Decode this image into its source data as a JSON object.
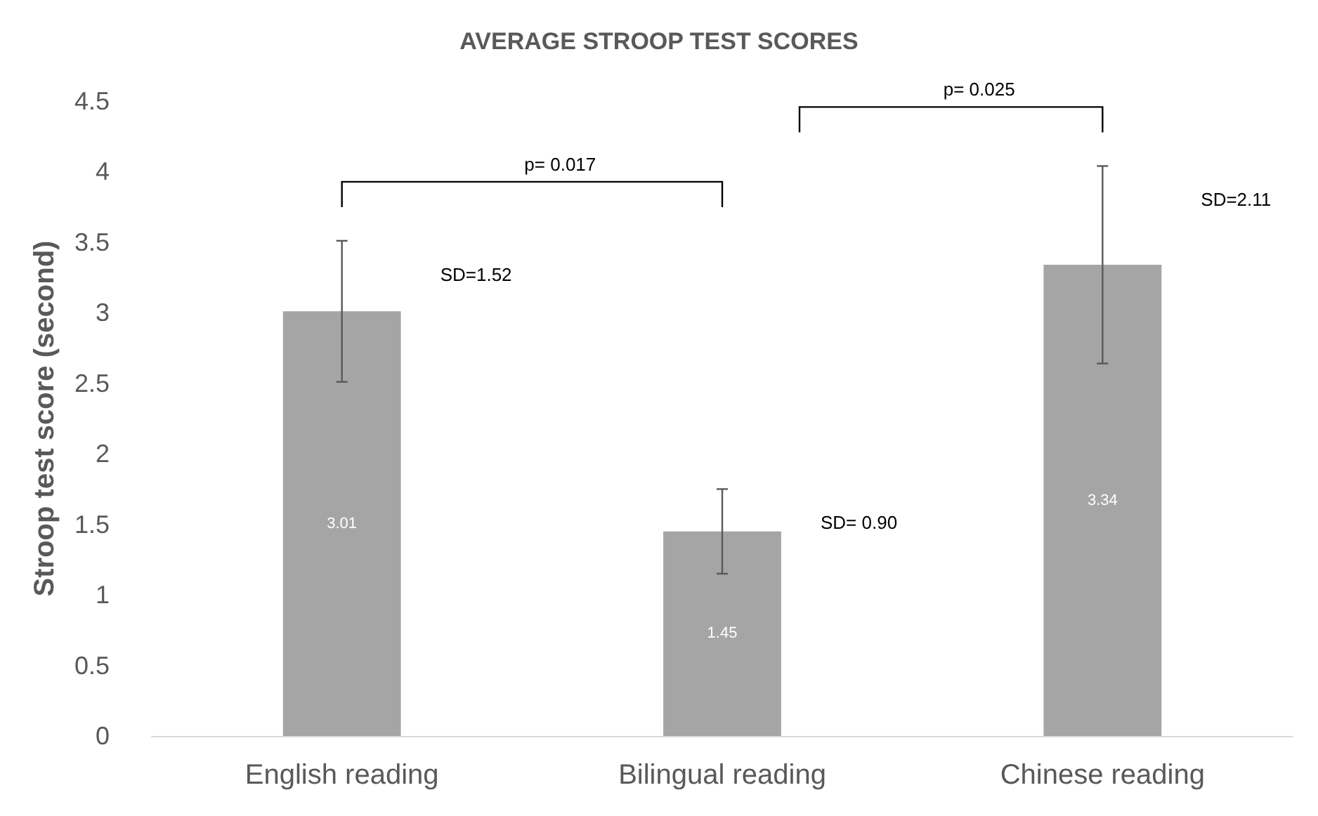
{
  "chart_data": {
    "type": "bar",
    "title": "AVERAGE STROOP TEST SCORES",
    "ylabel": "Stroop test score (second)",
    "categories": [
      "English reading",
      "Bilingual reading",
      "Chinese reading"
    ],
    "values": [
      3.01,
      1.45,
      3.34
    ],
    "errors": [
      0.5,
      0.3,
      0.7
    ],
    "color": "#a5a5a5",
    "data_labels": true,
    "ylim": [
      0,
      4.5
    ],
    "yticks": [
      0,
      0.5,
      1,
      1.5,
      2,
      2.5,
      3,
      3.5,
      4,
      4.5
    ],
    "grid": false,
    "annotations": [
      "SD=1.52",
      "SD= 0.90",
      "SD=2.11",
      "p= 0.017",
      "p= 0.025"
    ]
  }
}
